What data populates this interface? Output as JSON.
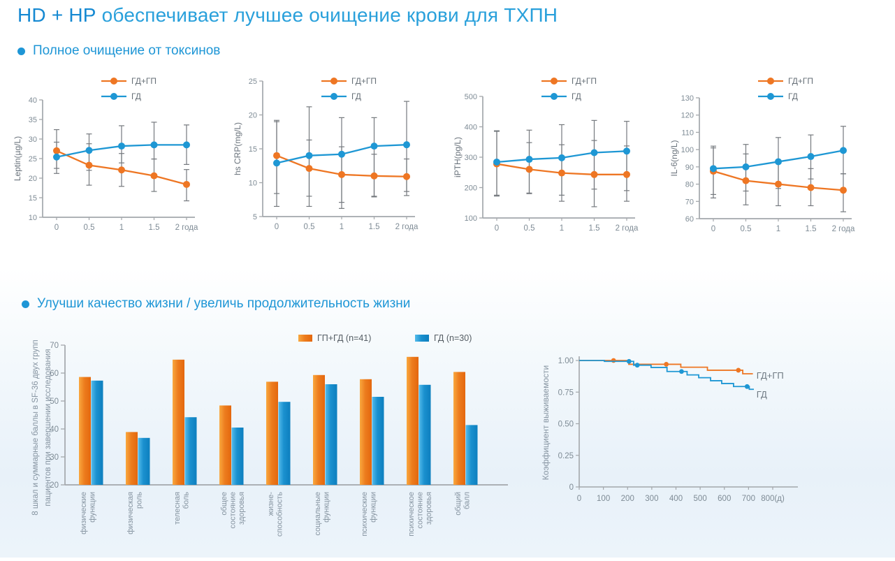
{
  "page": {
    "title_highlight": "HD + HP",
    "title_rest": "обеспечивает лучшее очищение крови для ТХПН",
    "sections": [
      {
        "label": "Полное очищение от токсинов"
      },
      {
        "label": "Улучши качество жизни / увеличь продолжительность жизни"
      }
    ]
  },
  "colors": {
    "accent": "#1E96D6",
    "orange": "#EE7623",
    "blue": "#1E97D4",
    "orange_grad": [
      "#F9A83F",
      "#ED7D1E",
      "#E4670D"
    ],
    "blue_grad": [
      "#55BCEB",
      "#1A90CF",
      "#0D7FBE"
    ],
    "axis": "#A3A7AB",
    "tick_text": "#7E8B95",
    "axis_label": "#69727B",
    "error_bar": "#75797E",
    "legend_text": "#666F77",
    "category_text": "#8694A1"
  },
  "chart_data": [
    {
      "type": "line",
      "id": "leptin-chart",
      "ylabel": "Leptin(µg/L)",
      "ylim": [
        10,
        40
      ],
      "ytick_step": 5,
      "top": 43,
      "bottom": 211,
      "x_labels": [
        "0",
        "0.5",
        "1",
        "1.5",
        "2 года"
      ],
      "series": [
        {
          "name": "ГД+ГП",
          "color": "orange",
          "values": [
            27,
            23.3,
            22.1,
            20.6,
            18.4
          ],
          "lo": [
            22.5,
            18.2,
            17.9,
            16.6,
            14.2
          ],
          "hi": [
            32.4,
            28.8,
            26.3,
            24.9,
            22.2
          ]
        },
        {
          "name": "ГД",
          "color": "blue",
          "values": [
            25.4,
            27.1,
            28.2,
            28.5,
            28.5
          ],
          "lo": [
            21.2,
            22,
            23.9,
            24.9,
            23.5
          ],
          "hi": [
            29.2,
            31.3,
            33.4,
            34.3,
            33.6
          ]
        }
      ]
    },
    {
      "type": "line",
      "id": "hs-crp-chart",
      "ylabel": "hs CRP(mg/L)",
      "ylim": [
        5,
        25
      ],
      "ytick_step": 5,
      "top": 16,
      "bottom": 210,
      "x_labels": [
        "0",
        "0.5",
        "1",
        "1.5",
        "2 года"
      ],
      "series": [
        {
          "name": "ГД+ГП",
          "color": "orange",
          "values": [
            14,
            12.1,
            11.2,
            11,
            10.9
          ],
          "lo": [
            8.4,
            8,
            6.2,
            8,
            8.1
          ],
          "hi": [
            19,
            16.3,
            15.3,
            14.2,
            13.5
          ]
        },
        {
          "name": "ГД",
          "color": "blue",
          "values": [
            12.9,
            14,
            14.2,
            15.4,
            15.6
          ],
          "lo": [
            6.5,
            6.5,
            7.1,
            7.9,
            8.7
          ],
          "hi": [
            19.2,
            21.2,
            19.6,
            19.6,
            22
          ]
        }
      ]
    },
    {
      "type": "line",
      "id": "ipth-chart",
      "ylabel": "iPTH(pg/L)",
      "ylim": [
        100,
        500
      ],
      "ytick_step": 100,
      "top": 38,
      "bottom": 212,
      "x_labels": [
        "0",
        "0.5",
        "1",
        "1.5",
        "2 года"
      ],
      "series": [
        {
          "name": "ГД+ГП",
          "color": "orange",
          "values": [
            278,
            260,
            248,
            243,
            243
          ],
          "lo": [
            172,
            180,
            155,
            137,
            155
          ],
          "hi": [
            387,
            348,
            341,
            355,
            337
          ]
        },
        {
          "name": "ГД",
          "color": "blue",
          "values": [
            284,
            293,
            298,
            315,
            320
          ],
          "lo": [
            175,
            182,
            175,
            195,
            190
          ],
          "hi": [
            385,
            389,
            407,
            421,
            418
          ]
        }
      ]
    },
    {
      "type": "line",
      "id": "il6-chart",
      "ylabel": "IL-6(ng/L)",
      "ylim": [
        60,
        130
      ],
      "ytick_step": 10,
      "top": 40,
      "bottom": 213,
      "x_labels": [
        "0",
        "0.5",
        "1",
        "1.5",
        "2 года"
      ],
      "series": [
        {
          "name": "ГД+ГП",
          "color": "orange",
          "values": [
            87.5,
            82,
            80,
            78,
            76.5
          ],
          "lo": [
            72,
            68,
            67.5,
            67.5,
            64
          ],
          "hi": [
            101,
            97.5,
            92.5,
            89,
            86
          ]
        },
        {
          "name": "ГД",
          "color": "blue",
          "values": [
            89,
            90,
            93,
            96,
            99.5
          ],
          "lo": [
            74,
            76,
            77.5,
            83,
            86
          ],
          "hi": [
            102,
            103,
            107,
            108.5,
            113.5
          ]
        }
      ]
    },
    {
      "type": "bar",
      "id": "sf36-chart",
      "ylabel_lines": [
        "8 шкал и суммарные баллы в SF-36 двух групп",
        "пациентов при завершении исследования"
      ],
      "ylim": [
        20,
        70
      ],
      "ytick_step": 10,
      "categories": [
        [
          "физические",
          "функции"
        ],
        [
          "физическая",
          "роль"
        ],
        [
          "телесная",
          "боль"
        ],
        [
          "общее",
          "состояние",
          "здоровья"
        ],
        [
          "жизне-",
          "способность"
        ],
        [
          "социальные",
          "функции"
        ],
        [
          "психические",
          "функции"
        ],
        [
          "психическое",
          "состояние",
          "здоровья"
        ],
        [
          "общий",
          "балл"
        ]
      ],
      "series": [
        {
          "name": "ГП+ГД (n=41)",
          "color": "orange",
          "values": [
            58.6,
            38.9,
            64.8,
            48.4,
            56.9,
            59.3,
            57.8,
            65.8,
            60.4
          ]
        },
        {
          "name": "ГД (n=30)",
          "color": "blue",
          "values": [
            57.3,
            36.8,
            44.2,
            40.5,
            49.7,
            56,
            51.5,
            55.8,
            41.4
          ]
        }
      ]
    },
    {
      "type": "step",
      "id": "survival-chart",
      "ylabel": "Коэффициент выживаемости",
      "yticks": [
        {
          "v": 0,
          "label": "0"
        },
        {
          "v": 0.25,
          "label": "0.25"
        },
        {
          "v": 0.5,
          "label": "0.50"
        },
        {
          "v": 0.75,
          "label": "0.75"
        },
        {
          "v": 1,
          "label": "1.00"
        }
      ],
      "xticks": [
        {
          "v": 0,
          "label": "0"
        },
        {
          "v": 100,
          "label": "100"
        },
        {
          "v": 200,
          "label": "200"
        },
        {
          "v": 300,
          "label": "300"
        },
        {
          "v": 400,
          "label": "400"
        },
        {
          "v": 500,
          "label": "500"
        },
        {
          "v": 600,
          "label": "600"
        },
        {
          "v": 700,
          "label": "700"
        },
        {
          "v": 800,
          "label": "800(д)"
        }
      ],
      "xmax": 800,
      "series": [
        {
          "name": "ГД+ГП",
          "color": "orange",
          "points": [
            [
              0,
              1
            ],
            [
              205,
              1
            ],
            [
              205,
              0.97
            ],
            [
              420,
              0.97
            ],
            [
              420,
              0.947
            ],
            [
              530,
              0.947
            ],
            [
              530,
              0.923
            ],
            [
              676,
              0.923
            ],
            [
              676,
              0.895
            ],
            [
              718,
              0.895
            ]
          ],
          "censors": [
            [
              142,
              1
            ],
            [
              360,
              0.97
            ],
            [
              658,
              0.923
            ]
          ],
          "label_at": [
            733,
            0.878
          ]
        },
        {
          "name": "ГД",
          "color": "blue",
          "points": [
            [
              0,
              1
            ],
            [
              104,
              1
            ],
            [
              104,
              0.993
            ],
            [
              225,
              0.993
            ],
            [
              225,
              0.963
            ],
            [
              297,
              0.963
            ],
            [
              297,
              0.945
            ],
            [
              363,
              0.945
            ],
            [
              363,
              0.913
            ],
            [
              446,
              0.913
            ],
            [
              446,
              0.886
            ],
            [
              494,
              0.886
            ],
            [
              494,
              0.864
            ],
            [
              543,
              0.864
            ],
            [
              543,
              0.84
            ],
            [
              589,
              0.84
            ],
            [
              589,
              0.818
            ],
            [
              638,
              0.818
            ],
            [
              638,
              0.794
            ],
            [
              703,
              0.794
            ],
            [
              703,
              0.772
            ],
            [
              722,
              0.772
            ]
          ],
          "censors": [
            [
              206,
              0.993
            ],
            [
              240,
              0.963
            ],
            [
              423,
              0.913
            ],
            [
              694,
              0.794
            ]
          ],
          "label_at": [
            733,
            0.728
          ]
        }
      ]
    }
  ]
}
